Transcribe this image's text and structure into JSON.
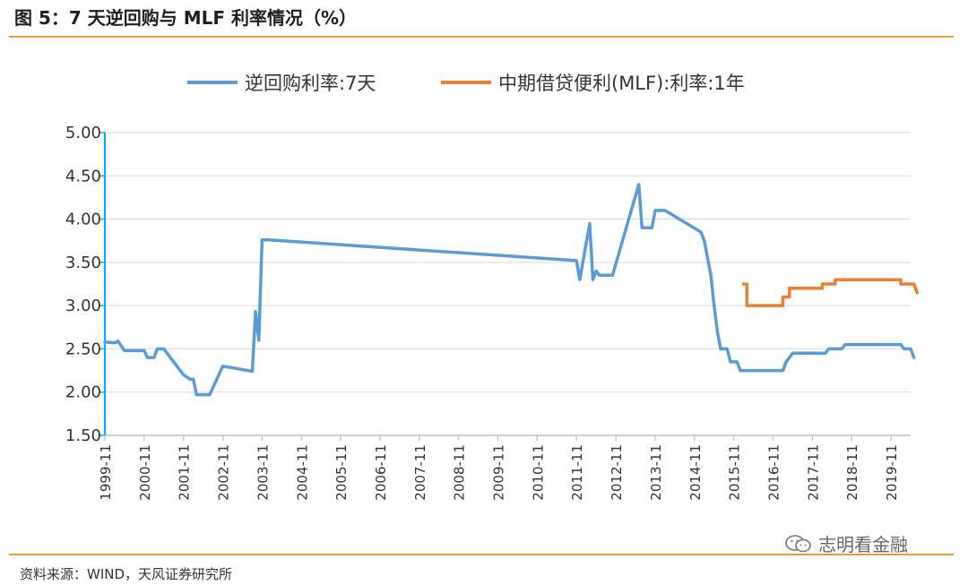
{
  "header": {
    "title": "图 5：7 天逆回购与 MLF 利率情况（%）"
  },
  "footer": {
    "source": "资料来源：WIND，天风证券研究所",
    "watermark": "志明看金融"
  },
  "colors": {
    "rule": "#e69b3a",
    "reverse_repo": "#5b9bd5",
    "mlf": "#ed7d31",
    "axis": "#00b0f0",
    "grid": "#d9d9d9"
  },
  "chart_data": {
    "type": "line",
    "title": "",
    "xlabel": "",
    "ylabel": "",
    "ylim": [
      1.5,
      5.0
    ],
    "yticks": [
      "1.50",
      "2.00",
      "2.50",
      "3.00",
      "3.50",
      "4.00",
      "4.50",
      "5.00"
    ],
    "xticks": [
      "1999-11",
      "2000-11",
      "2001-11",
      "2002-11",
      "2003-11",
      "2004-11",
      "2005-11",
      "2006-11",
      "2007-11",
      "2008-11",
      "2009-11",
      "2010-11",
      "2011-11",
      "2012-11",
      "2013-11",
      "2014-11",
      "2015-11",
      "2016-11",
      "2017-11",
      "2018-11",
      "2019-11"
    ],
    "grid": "horizontal",
    "legend_position": "top",
    "series": [
      {
        "name": "逆回购利率:7天",
        "points": [
          [
            "1999-11",
            2.58
          ],
          [
            "2000-02",
            2.57
          ],
          [
            "2000-03",
            2.59
          ],
          [
            "2000-05",
            2.48
          ],
          [
            "2000-11",
            2.48
          ],
          [
            "2000-12",
            2.4
          ],
          [
            "2001-02",
            2.4
          ],
          [
            "2001-03",
            2.5
          ],
          [
            "2001-05",
            2.5
          ],
          [
            "2001-11",
            2.2
          ],
          [
            "2002-01",
            2.15
          ],
          [
            "2002-02",
            2.15
          ],
          [
            "2002-03",
            1.97
          ],
          [
            "2002-07",
            1.97
          ],
          [
            "2002-11",
            2.3
          ],
          [
            "2003-08",
            2.24
          ],
          [
            "2003-09",
            2.93
          ],
          [
            "2003-10",
            2.6
          ],
          [
            "2003-11",
            3.76
          ],
          [
            "2004-01",
            3.76
          ],
          [
            "2011-11",
            3.52
          ],
          [
            "2011-12",
            3.3
          ],
          [
            "2012-03",
            3.95
          ],
          [
            "2012-04",
            3.3
          ],
          [
            "2012-05",
            3.4
          ],
          [
            "2012-06",
            3.35
          ],
          [
            "2012-10",
            3.35
          ],
          [
            "2013-06",
            4.4
          ],
          [
            "2013-07",
            3.9
          ],
          [
            "2013-10",
            3.9
          ],
          [
            "2013-11",
            4.1
          ],
          [
            "2014-02",
            4.1
          ],
          [
            "2015-01",
            3.85
          ],
          [
            "2015-02",
            3.75
          ],
          [
            "2015-03",
            3.55
          ],
          [
            "2015-04",
            3.35
          ],
          [
            "2015-05",
            3.0
          ],
          [
            "2015-06",
            2.7
          ],
          [
            "2015-07",
            2.5
          ],
          [
            "2015-09",
            2.5
          ],
          [
            "2015-10",
            2.35
          ],
          [
            "2015-12",
            2.35
          ],
          [
            "2016-01",
            2.25
          ],
          [
            "2017-02",
            2.25
          ],
          [
            "2017-03",
            2.35
          ],
          [
            "2017-05",
            2.45
          ],
          [
            "2018-03",
            2.45
          ],
          [
            "2018-04",
            2.5
          ],
          [
            "2018-08",
            2.5
          ],
          [
            "2018-09",
            2.55
          ],
          [
            "2020-02",
            2.55
          ],
          [
            "2020-03",
            2.5
          ],
          [
            "2020-05",
            2.5
          ],
          [
            "2020-06",
            2.4
          ]
        ]
      },
      {
        "name": "中期借贷便利(MLF):利率:1年",
        "points": [
          [
            "2016-02",
            3.25
          ],
          [
            "2016-03",
            3.25
          ],
          [
            "2016-03",
            3.0
          ],
          [
            "2017-02",
            3.0
          ],
          [
            "2017-02",
            3.1
          ],
          [
            "2017-04",
            3.1
          ],
          [
            "2017-04",
            3.2
          ],
          [
            "2018-02",
            3.2
          ],
          [
            "2018-02",
            3.25
          ],
          [
            "2018-06",
            3.25
          ],
          [
            "2018-06",
            3.3
          ],
          [
            "2020-02",
            3.3
          ],
          [
            "2020-02",
            3.25
          ],
          [
            "2020-06",
            3.25
          ],
          [
            "2020-07",
            3.15
          ]
        ]
      }
    ]
  }
}
